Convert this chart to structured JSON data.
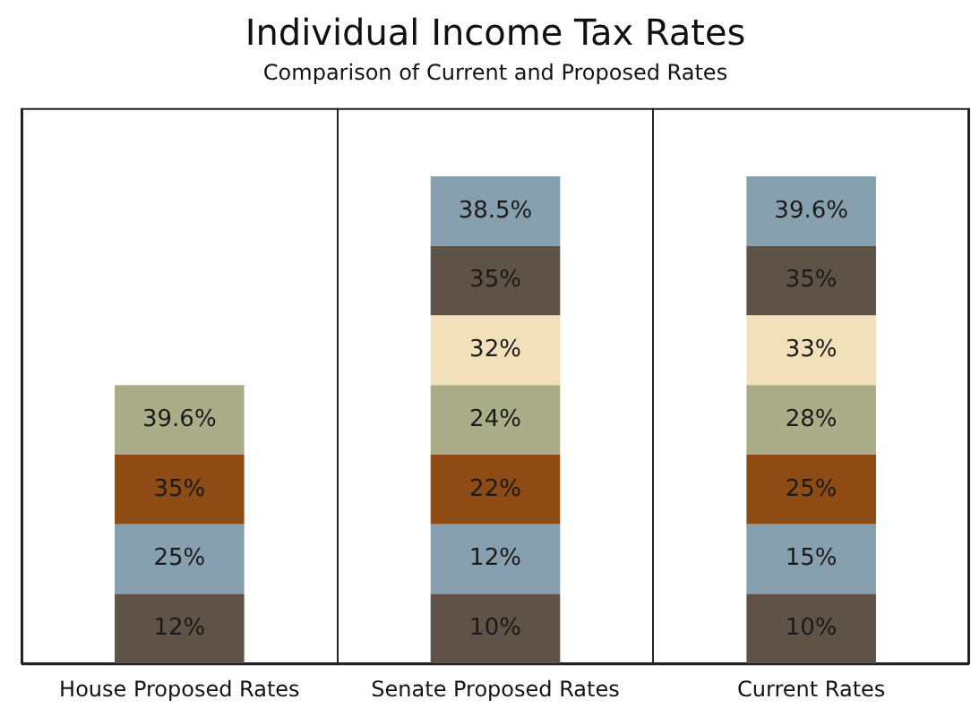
{
  "chart_data": {
    "type": "other",
    "title": "Individual Income Tax Rates",
    "subtitle": "Comparison of Current and Proposed Rates",
    "categories": [
      "House Proposed Rates",
      "Senate Proposed Rates",
      "Current Rates"
    ],
    "series": [
      {
        "colors": [
          "#5f5347",
          "#5f5347",
          "#5f5347"
        ],
        "values": [
          12,
          10,
          10
        ],
        "value_labels": [
          "12%",
          "10%",
          "10%"
        ]
      },
      {
        "colors": [
          "#87a0b0",
          "#87a0b0",
          "#87a0b0"
        ],
        "values": [
          25,
          12,
          15
        ],
        "value_labels": [
          "25%",
          "12%",
          "15%"
        ]
      },
      {
        "colors": [
          "#8e4c14",
          "#8e4c14",
          "#8e4c14"
        ],
        "values": [
          35,
          22,
          25
        ],
        "value_labels": [
          "35%",
          "22%",
          "25%"
        ]
      },
      {
        "colors": [
          "#a9ae88",
          "#a9ae88",
          "#a9ae88"
        ],
        "values": [
          39.6,
          24,
          28
        ],
        "value_labels": [
          "39.6%",
          "24%",
          "28%"
        ]
      },
      {
        "colors": [
          null,
          "#f2e0bb",
          "#f2e0bb"
        ],
        "values": [
          null,
          32,
          33
        ],
        "value_labels": [
          null,
          "32%",
          "33%"
        ]
      },
      {
        "colors": [
          null,
          "#5f5347",
          "#5f5347"
        ],
        "values": [
          null,
          35,
          35
        ],
        "value_labels": [
          null,
          "35%",
          "35%"
        ]
      },
      {
        "colors": [
          null,
          "#87a0b0",
          "#87a0b0"
        ],
        "values": [
          null,
          38.5,
          39.6
        ],
        "value_labels": [
          null,
          "38.5%",
          "39.6%"
        ]
      }
    ]
  }
}
